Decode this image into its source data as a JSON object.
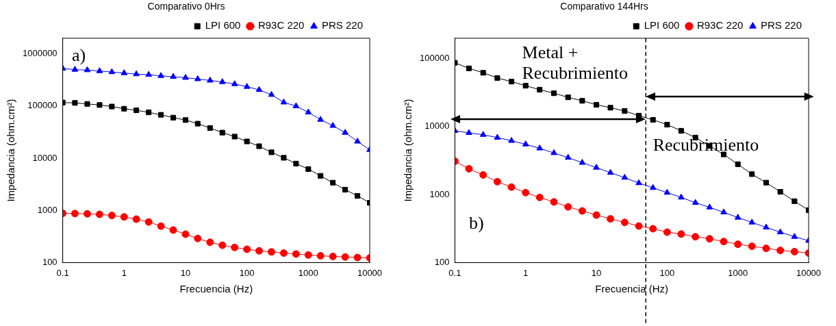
{
  "chart_data": [
    {
      "type": "line",
      "title": "Comparativo 0Hrs",
      "xlabel": "Frecuencia (Hz)",
      "ylabel": "Impedancia (ohm.cm²)",
      "log": "xy",
      "grid": false,
      "legend": "top right",
      "line_style": "solid",
      "annotations": [
        "a)"
      ],
      "x": [
        0.1,
        0.158,
        0.251,
        0.398,
        0.631,
        1,
        1.58,
        2.51,
        3.98,
        6.31,
        10,
        15.8,
        25.1,
        39.8,
        63.1,
        100,
        158,
        251,
        398,
        631,
        1000,
        1580,
        2510,
        3980,
        6310,
        10000
      ],
      "xlim": [
        0.1,
        10000
      ],
      "xticks": [
        0.1,
        1,
        10,
        100,
        1000,
        10000
      ],
      "ylim": [
        100,
        2000000
      ],
      "yticks": [
        100,
        1000,
        10000,
        100000,
        1000000
      ],
      "series": [
        {
          "name": "LPI 600",
          "color": "#000000",
          "marker": "square",
          "values": [
            117000,
            115000,
            110000,
            105000,
            98000,
            89000,
            83000,
            76000,
            68000,
            60000,
            54000,
            46000,
            38000,
            31000,
            26000,
            21000,
            17000,
            13000,
            10200,
            7900,
            6200,
            4600,
            3400,
            2500,
            1900,
            1400
          ]
        },
        {
          "name": "R93C 220",
          "color": "#ff0000",
          "marker": "circle",
          "values": [
            880,
            870,
            860,
            840,
            800,
            750,
            680,
            600,
            500,
            420,
            350,
            290,
            245,
            215,
            195,
            180,
            168,
            160,
            152,
            146,
            140,
            135,
            131,
            128,
            125,
            123
          ]
        },
        {
          "name": "PRS 220",
          "color": "#0000ff",
          "marker": "triangle",
          "values": [
            525000,
            500000,
            490000,
            470000,
            450000,
            430000,
            410000,
            400000,
            380000,
            365000,
            350000,
            330000,
            310000,
            290000,
            265000,
            235000,
            205000,
            165000,
            118000,
            100000,
            76000,
            55000,
            42000,
            31000,
            21000,
            14500
          ]
        }
      ]
    },
    {
      "type": "line",
      "title": "Comparativo 144Hrs",
      "xlabel": "Frecuencia (Hz)",
      "ylabel": "Impedancia (ohm.cm²)",
      "log": "xy",
      "grid": false,
      "legend": "top right",
      "line_style": "solid",
      "annotations": [
        "Metal + Recubrimiento",
        "Recubrimiento",
        "b)"
      ],
      "ref_lines": [
        {
          "axis": "x",
          "value": 50,
          "color": "#000000",
          "line_style": "dashed"
        }
      ],
      "x": [
        0.1,
        0.158,
        0.251,
        0.398,
        0.631,
        1,
        1.58,
        2.51,
        3.98,
        6.31,
        10,
        15.8,
        25.1,
        39.8,
        63.1,
        100,
        158,
        251,
        398,
        631,
        1000,
        1580,
        2510,
        3980,
        6310,
        10000
      ],
      "xlim": [
        0.1,
        10000
      ],
      "xticks": [
        0.1,
        1,
        10,
        100,
        1000,
        10000
      ],
      "ylim": [
        100,
        200000
      ],
      "yticks": [
        100,
        1000,
        10000,
        100000
      ],
      "series": [
        {
          "name": "LPI 600",
          "color": "#000000",
          "marker": "square",
          "values": [
            87000,
            72000,
            62000,
            52000,
            46000,
            40000,
            35000,
            31000,
            27000,
            24000,
            21000,
            19000,
            17000,
            14500,
            12600,
            10700,
            8700,
            6900,
            5200,
            3900,
            2800,
            2000,
            1500,
            1100,
            800,
            590
          ]
        },
        {
          "name": "R93C 220",
          "color": "#ff0000",
          "marker": "circle",
          "values": [
            3100,
            2400,
            1950,
            1550,
            1290,
            1070,
            910,
            780,
            660,
            575,
            500,
            440,
            390,
            345,
            315,
            280,
            263,
            240,
            224,
            204,
            186,
            174,
            162,
            151,
            145,
            138
          ]
        },
        {
          "name": "PRS 220",
          "color": "#0000ff",
          "marker": "triangle",
          "values": [
            8700,
            8100,
            7600,
            6900,
            6200,
            5500,
            4800,
            4100,
            3500,
            2950,
            2500,
            2100,
            1780,
            1480,
            1260,
            1070,
            910,
            760,
            650,
            550,
            460,
            390,
            330,
            280,
            240,
            210
          ]
        }
      ]
    }
  ]
}
